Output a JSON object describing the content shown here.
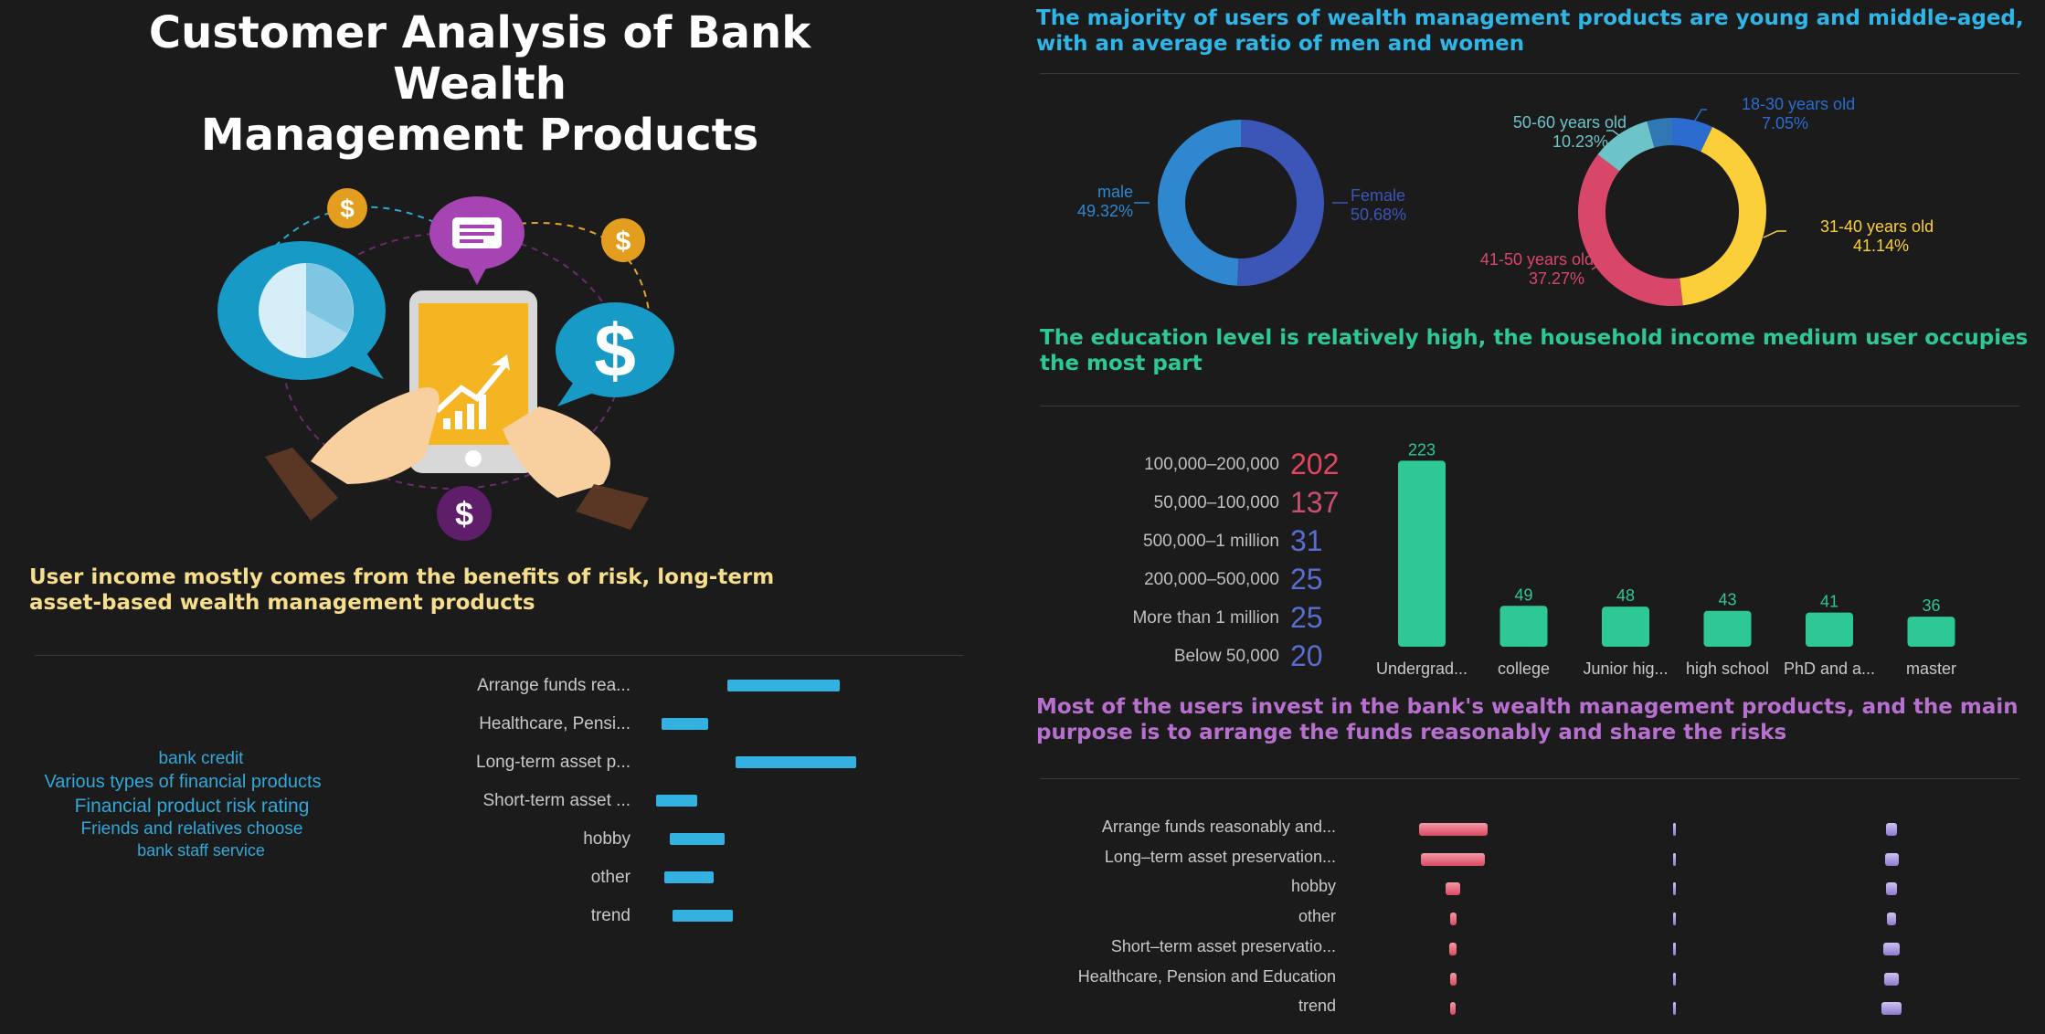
{
  "page": {
    "title_line1": "Customer Analysis of Bank Wealth",
    "title_line2": "Management Products"
  },
  "colors": {
    "background": "#1b1b1c",
    "blue_heading": "#2fb5e6",
    "green_heading": "#2dc896",
    "yellow_heading": "#f7de8c",
    "purple_heading": "#b870cf",
    "bar_blue": "#33b1e0",
    "bar_green": "#2dc896",
    "pink": "#e0475f"
  },
  "left": {
    "heading": "User income mostly comes from the benefits of risk, long-term asset-based wealth management products",
    "cloud": [
      {
        "text": "bank credit",
        "size": 19
      },
      {
        "text": "Various types of financial products",
        "size": 20
      },
      {
        "text": "Financial product risk rating",
        "size": 21
      },
      {
        "text": "Friends and relatives choose",
        "size": 19
      },
      {
        "text": "bank staff service",
        "size": 18
      }
    ]
  },
  "right": {
    "heading1": "The majority of users of wealth management products are young and middle-aged, with an average ratio of men and women",
    "heading2": "The education level is relatively high, the household income medium user occupies the most part",
    "heading3": "Most of the users invest in the bank's wealth management products, and the main purpose is to arrange the funds reasonably and share the risks"
  },
  "chart_data": [
    {
      "id": "income_source",
      "type": "bar",
      "orientation": "horizontal-floating",
      "categories": [
        "Arrange funds rea...",
        "Healthcare, Pensi...",
        "Long-term asset p...",
        "Short-term asset ...",
        "hobby",
        "other",
        "trend"
      ],
      "ranges": [
        [
          32,
          73
        ],
        [
          8,
          25
        ],
        [
          35,
          79
        ],
        [
          6,
          21
        ],
        [
          11,
          31
        ],
        [
          9,
          27
        ],
        [
          12,
          34
        ]
      ],
      "xlim": [
        0,
        100
      ]
    },
    {
      "id": "gender",
      "type": "pie",
      "donut": true,
      "slices": [
        {
          "label": "Female",
          "percent": "50.68%",
          "value": 50.68,
          "color": "#3c56b8"
        },
        {
          "label": "male",
          "percent": "49.32%",
          "value": 49.32,
          "color": "#2f87cf"
        }
      ]
    },
    {
      "id": "age",
      "type": "pie",
      "donut": true,
      "slices": [
        {
          "label": "18-30 years old",
          "percent": "7.05%",
          "value": 7.05,
          "color": "#2c6ccf"
        },
        {
          "label": "31-40 years old",
          "percent": "41.14%",
          "value": 41.14,
          "color": "#fbcf3a"
        },
        {
          "label": "41-50 years old",
          "percent": "37.27%",
          "value": 37.27,
          "color": "#d8476a"
        },
        {
          "label": "50-60 years old",
          "percent": "10.23%",
          "value": 10.23,
          "color": "#6cc3c8"
        },
        {
          "label": "",
          "percent": "",
          "value": 4.31,
          "color": "#2f78b4"
        }
      ]
    },
    {
      "id": "household_income",
      "type": "table",
      "rows": [
        {
          "label": "100,000–200,000",
          "value": "202",
          "color": "#e0475f"
        },
        {
          "label": "50,000–100,000",
          "value": "137",
          "color": "#c9506e"
        },
        {
          "label": "500,000–1 million",
          "value": "31",
          "color": "#5a6ed0"
        },
        {
          "label": "200,000–500,000",
          "value": "25",
          "color": "#5a6ed0"
        },
        {
          "label": "More than 1 million",
          "value": "25",
          "color": "#5a6ed0"
        },
        {
          "label": "Below 50,000",
          "value": "20",
          "color": "#5a6ed0"
        }
      ]
    },
    {
      "id": "education",
      "type": "bar",
      "categories": [
        "Undergrad...",
        "college",
        "Junior hig...",
        "high school",
        "PhD and a...",
        "master"
      ],
      "values": [
        223,
        49,
        48,
        43,
        41,
        36
      ],
      "ylim": [
        0,
        230
      ]
    },
    {
      "id": "purpose",
      "type": "bar",
      "orientation": "horizontal-multi",
      "categories": [
        "Arrange funds reasonably and...",
        "Long–term asset preservation...",
        "hobby",
        "other",
        "Short–term asset preservatio...",
        "Healthcare, Pension and Education",
        "trend"
      ],
      "series": [
        {
          "values": [
            75,
            70,
            16,
            7,
            8,
            7,
            6
          ],
          "color": "#e86a7a"
        },
        {
          "values": [
            3,
            1,
            2,
            2,
            2,
            2,
            1
          ],
          "color": "#9b85d6"
        },
        {
          "values": [
            12,
            15,
            12,
            10,
            18,
            16,
            22
          ],
          "color": "#9b85d6"
        }
      ]
    }
  ]
}
